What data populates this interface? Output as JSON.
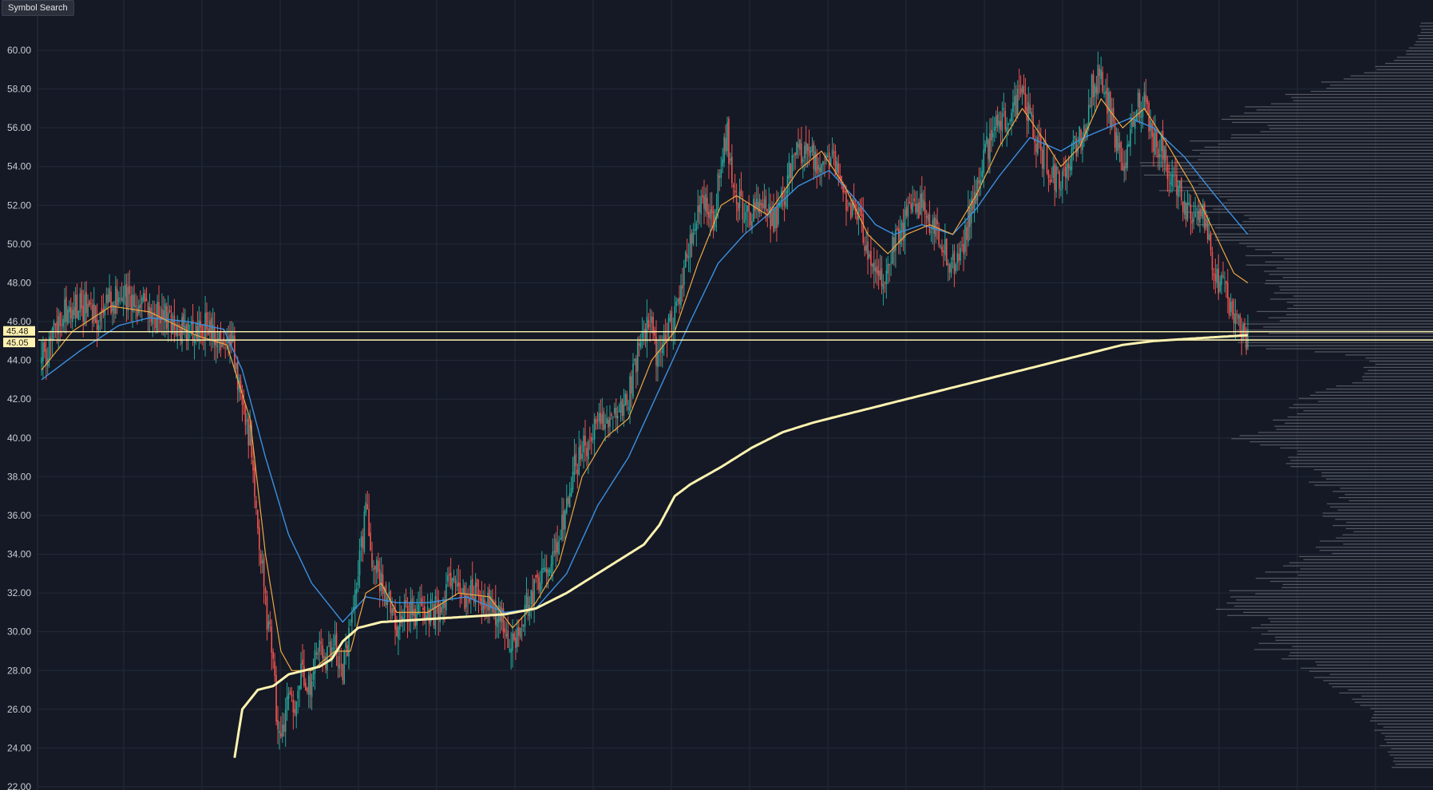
{
  "toolbar": {
    "symbol_search_label": "Symbol Search"
  },
  "chart_data": {
    "type": "candlestick",
    "title": "",
    "xlabel": "",
    "ylabel": "",
    "ylim": [
      22,
      62
    ],
    "yticks": [
      "22.00",
      "24.00",
      "26.00",
      "28.00",
      "30.00",
      "32.00",
      "34.00",
      "36.00",
      "38.00",
      "40.00",
      "42.00",
      "44.00",
      "46.00",
      "48.00",
      "50.00",
      "52.00",
      "54.00",
      "56.00",
      "58.00",
      "60.00"
    ],
    "grid": true,
    "colors": {
      "background": "#141925",
      "grid": "#232a38",
      "up_candle": "#26a69a",
      "down_candle": "#ef5350",
      "ma_fast": "#f0a742",
      "ma_slow": "#3d8fe0",
      "vwap": "#fff3b0",
      "hline": "#fff3b0",
      "volume_profile": "#8a8d94",
      "tick_text": "#c9ccd3"
    },
    "horizontal_lines": [
      {
        "value": 45.48,
        "label": "45.48"
      },
      {
        "value": 45.05,
        "label": "45.05"
      }
    ],
    "anchors": {
      "close": [
        [
          0,
          44.0
        ],
        [
          8,
          45.5
        ],
        [
          15,
          46.5
        ],
        [
          25,
          46.8
        ],
        [
          35,
          46.3
        ],
        [
          45,
          47.0
        ],
        [
          52,
          47.5
        ],
        [
          60,
          47.0
        ],
        [
          68,
          46.6
        ],
        [
          78,
          46.3
        ],
        [
          88,
          45.8
        ],
        [
          98,
          45.3
        ],
        [
          108,
          45.8
        ],
        [
          118,
          45.2
        ],
        [
          124,
          44.6
        ],
        [
          130,
          42.0
        ],
        [
          136,
          39.5
        ],
        [
          140,
          36.0
        ],
        [
          144,
          32.0
        ],
        [
          149,
          29.0
        ],
        [
          152,
          26.0
        ],
        [
          156,
          24.5
        ],
        [
          160,
          27.0
        ],
        [
          164,
          26.5
        ],
        [
          168,
          28.5
        ],
        [
          173,
          27.0
        ],
        [
          178,
          29.5
        ],
        [
          184,
          28.5
        ],
        [
          190,
          29.3
        ],
        [
          195,
          28.2
        ],
        [
          200,
          30.0
        ],
        [
          205,
          33.0
        ],
        [
          210,
          36.5
        ],
        [
          215,
          33.5
        ],
        [
          220,
          32.5
        ],
        [
          225,
          31.5
        ],
        [
          230,
          30.5
        ],
        [
          238,
          31.0
        ],
        [
          248,
          30.8
        ],
        [
          258,
          31.2
        ],
        [
          265,
          32.8
        ],
        [
          272,
          31.8
        ],
        [
          280,
          32.0
        ],
        [
          290,
          31.5
        ],
        [
          298,
          30.5
        ],
        [
          303,
          29.0
        ],
        [
          308,
          30.2
        ],
        [
          315,
          31.5
        ],
        [
          322,
          32.3
        ],
        [
          330,
          33.5
        ],
        [
          335,
          34.5
        ],
        [
          340,
          37.0
        ],
        [
          345,
          38.5
        ],
        [
          352,
          39.5
        ],
        [
          358,
          40.5
        ],
        [
          365,
          40.5
        ],
        [
          372,
          40.8
        ],
        [
          378,
          41.5
        ],
        [
          384,
          43.5
        ],
        [
          390,
          45.5
        ],
        [
          395,
          45.8
        ],
        [
          399,
          44.0
        ],
        [
          404,
          45.0
        ],
        [
          410,
          46.5
        ],
        [
          416,
          48.5
        ],
        [
          422,
          50.5
        ],
        [
          428,
          52.5
        ],
        [
          434,
          51.0
        ],
        [
          440,
          54.0
        ],
        [
          444,
          55.5
        ],
        [
          448,
          52.5
        ],
        [
          454,
          52.0
        ],
        [
          460,
          51.5
        ],
        [
          468,
          52.0
        ],
        [
          474,
          51.0
        ],
        [
          480,
          52.5
        ],
        [
          488,
          54.5
        ],
        [
          496,
          54.8
        ],
        [
          504,
          54.3
        ],
        [
          510,
          54.6
        ],
        [
          516,
          53.5
        ],
        [
          522,
          52.0
        ],
        [
          528,
          51.5
        ],
        [
          534,
          50.0
        ],
        [
          540,
          49.0
        ],
        [
          546,
          48.0
        ],
        [
          550,
          49.5
        ],
        [
          556,
          50.5
        ],
        [
          562,
          51.5
        ],
        [
          568,
          52.0
        ],
        [
          574,
          51.0
        ],
        [
          580,
          50.5
        ],
        [
          586,
          49.5
        ],
        [
          592,
          49.0
        ],
        [
          598,
          50.5
        ],
        [
          604,
          52.5
        ],
        [
          610,
          54.5
        ],
        [
          616,
          55.8
        ],
        [
          622,
          56.5
        ],
        [
          628,
          57.0
        ],
        [
          634,
          57.5
        ],
        [
          640,
          56.5
        ],
        [
          646,
          55.0
        ],
        [
          652,
          54.0
        ],
        [
          658,
          53.3
        ],
        [
          664,
          54.0
        ],
        [
          670,
          55.0
        ],
        [
          676,
          56.0
        ],
        [
          680,
          58.0
        ],
        [
          686,
          58.8
        ],
        [
          690,
          57.5
        ],
        [
          696,
          55.0
        ],
        [
          702,
          54.0
        ],
        [
          708,
          57.0
        ],
        [
          714,
          57.5
        ],
        [
          720,
          55.5
        ],
        [
          726,
          55.0
        ],
        [
          730,
          53.5
        ],
        [
          736,
          53.0
        ],
        [
          742,
          51.5
        ],
        [
          748,
          52.0
        ],
        [
          754,
          51.0
        ],
        [
          760,
          48.5
        ],
        [
          766,
          47.5
        ],
        [
          772,
          46.0
        ],
        [
          778,
          45.2
        ],
        [
          781,
          45.0
        ]
      ],
      "ma_fast": [
        [
          0,
          43.5
        ],
        [
          20,
          45.5
        ],
        [
          45,
          46.8
        ],
        [
          70,
          46.5
        ],
        [
          100,
          45.3
        ],
        [
          120,
          44.8
        ],
        [
          135,
          41.0
        ],
        [
          145,
          34.0
        ],
        [
          155,
          29.0
        ],
        [
          162,
          28.0
        ],
        [
          175,
          28.0
        ],
        [
          190,
          29.0
        ],
        [
          200,
          29.0
        ],
        [
          210,
          32.0
        ],
        [
          220,
          32.5
        ],
        [
          230,
          31.0
        ],
        [
          250,
          31.0
        ],
        [
          270,
          32.0
        ],
        [
          290,
          31.8
        ],
        [
          305,
          30.2
        ],
        [
          320,
          31.5
        ],
        [
          335,
          33.5
        ],
        [
          350,
          38.0
        ],
        [
          365,
          40.0
        ],
        [
          380,
          41.0
        ],
        [
          395,
          44.0
        ],
        [
          410,
          45.5
        ],
        [
          425,
          49.0
        ],
        [
          440,
          52.0
        ],
        [
          450,
          52.5
        ],
        [
          470,
          51.5
        ],
        [
          490,
          53.8
        ],
        [
          505,
          54.8
        ],
        [
          520,
          53.0
        ],
        [
          535,
          50.5
        ],
        [
          548,
          49.5
        ],
        [
          560,
          50.5
        ],
        [
          575,
          51.0
        ],
        [
          590,
          50.5
        ],
        [
          605,
          52.5
        ],
        [
          620,
          55.0
        ],
        [
          635,
          57.0
        ],
        [
          648,
          55.5
        ],
        [
          660,
          54.0
        ],
        [
          672,
          55.0
        ],
        [
          686,
          57.5
        ],
        [
          700,
          56.0
        ],
        [
          714,
          57.0
        ],
        [
          730,
          55.0
        ],
        [
          745,
          53.0
        ],
        [
          760,
          50.5
        ],
        [
          772,
          48.5
        ],
        [
          781,
          48.0
        ]
      ],
      "ma_slow": [
        [
          0,
          43.0
        ],
        [
          25,
          44.5
        ],
        [
          50,
          45.8
        ],
        [
          70,
          46.2
        ],
        [
          95,
          46.0
        ],
        [
          118,
          45.6
        ],
        [
          130,
          43.5
        ],
        [
          145,
          39.0
        ],
        [
          160,
          35.0
        ],
        [
          175,
          32.5
        ],
        [
          195,
          30.5
        ],
        [
          210,
          31.8
        ],
        [
          230,
          31.5
        ],
        [
          250,
          31.5
        ],
        [
          275,
          31.8
        ],
        [
          300,
          31.0
        ],
        [
          320,
          31.2
        ],
        [
          340,
          33.0
        ],
        [
          360,
          36.5
        ],
        [
          380,
          39.0
        ],
        [
          400,
          42.5
        ],
        [
          420,
          46.0
        ],
        [
          438,
          49.0
        ],
        [
          455,
          50.5
        ],
        [
          470,
          51.5
        ],
        [
          490,
          53.0
        ],
        [
          510,
          53.8
        ],
        [
          525,
          52.5
        ],
        [
          540,
          51.0
        ],
        [
          552,
          50.5
        ],
        [
          570,
          51.0
        ],
        [
          590,
          50.5
        ],
        [
          605,
          51.8
        ],
        [
          620,
          53.5
        ],
        [
          640,
          55.5
        ],
        [
          660,
          54.8
        ],
        [
          675,
          55.5
        ],
        [
          690,
          56.0
        ],
        [
          705,
          56.5
        ],
        [
          720,
          56.0
        ],
        [
          740,
          54.5
        ],
        [
          760,
          52.5
        ],
        [
          781,
          50.5
        ]
      ],
      "vwap": [
        [
          125,
          23.5
        ],
        [
          130,
          26.0
        ],
        [
          135,
          26.5
        ],
        [
          140,
          27.0
        ],
        [
          150,
          27.2
        ],
        [
          160,
          27.8
        ],
        [
          170,
          28.0
        ],
        [
          180,
          28.2
        ],
        [
          188,
          28.6
        ],
        [
          195,
          29.5
        ],
        [
          205,
          30.2
        ],
        [
          220,
          30.5
        ],
        [
          240,
          30.6
        ],
        [
          260,
          30.7
        ],
        [
          280,
          30.8
        ],
        [
          300,
          30.9
        ],
        [
          320,
          31.2
        ],
        [
          340,
          32.0
        ],
        [
          360,
          33.0
        ],
        [
          380,
          34.0
        ],
        [
          390,
          34.5
        ],
        [
          400,
          35.5
        ],
        [
          410,
          37.0
        ],
        [
          420,
          37.6
        ],
        [
          440,
          38.5
        ],
        [
          460,
          39.5
        ],
        [
          480,
          40.3
        ],
        [
          500,
          40.8
        ],
        [
          520,
          41.2
        ],
        [
          540,
          41.6
        ],
        [
          560,
          42.0
        ],
        [
          580,
          42.4
        ],
        [
          600,
          42.8
        ],
        [
          620,
          43.2
        ],
        [
          640,
          43.6
        ],
        [
          660,
          44.0
        ],
        [
          680,
          44.4
        ],
        [
          700,
          44.8
        ],
        [
          720,
          45.0
        ],
        [
          740,
          45.1
        ],
        [
          760,
          45.2
        ],
        [
          781,
          45.3
        ]
      ]
    },
    "volume_profile": [
      [
        23,
        0.12
      ],
      [
        25,
        0.18
      ],
      [
        27,
        0.28
      ],
      [
        28,
        0.38
      ],
      [
        29,
        0.52
      ],
      [
        30,
        0.56
      ],
      [
        31,
        0.64
      ],
      [
        32,
        0.62
      ],
      [
        33,
        0.5
      ],
      [
        34,
        0.38
      ],
      [
        35,
        0.3
      ],
      [
        36,
        0.32
      ],
      [
        37,
        0.3
      ],
      [
        38,
        0.38
      ],
      [
        39,
        0.46
      ],
      [
        40,
        0.6
      ],
      [
        41,
        0.52
      ],
      [
        42,
        0.4
      ],
      [
        43,
        0.26
      ],
      [
        44,
        0.18
      ],
      [
        45,
        0.68
      ],
      [
        46,
        0.56
      ],
      [
        47,
        0.48
      ],
      [
        48,
        0.5
      ],
      [
        49,
        0.55
      ],
      [
        50,
        0.62
      ],
      [
        51,
        0.7
      ],
      [
        52,
        0.74
      ],
      [
        53,
        0.8
      ],
      [
        54,
        0.9
      ],
      [
        55,
        0.82
      ],
      [
        56,
        0.62
      ],
      [
        57,
        0.6
      ],
      [
        58,
        0.42
      ],
      [
        59,
        0.2
      ],
      [
        60,
        0.08
      ],
      [
        61,
        0.04
      ]
    ]
  }
}
